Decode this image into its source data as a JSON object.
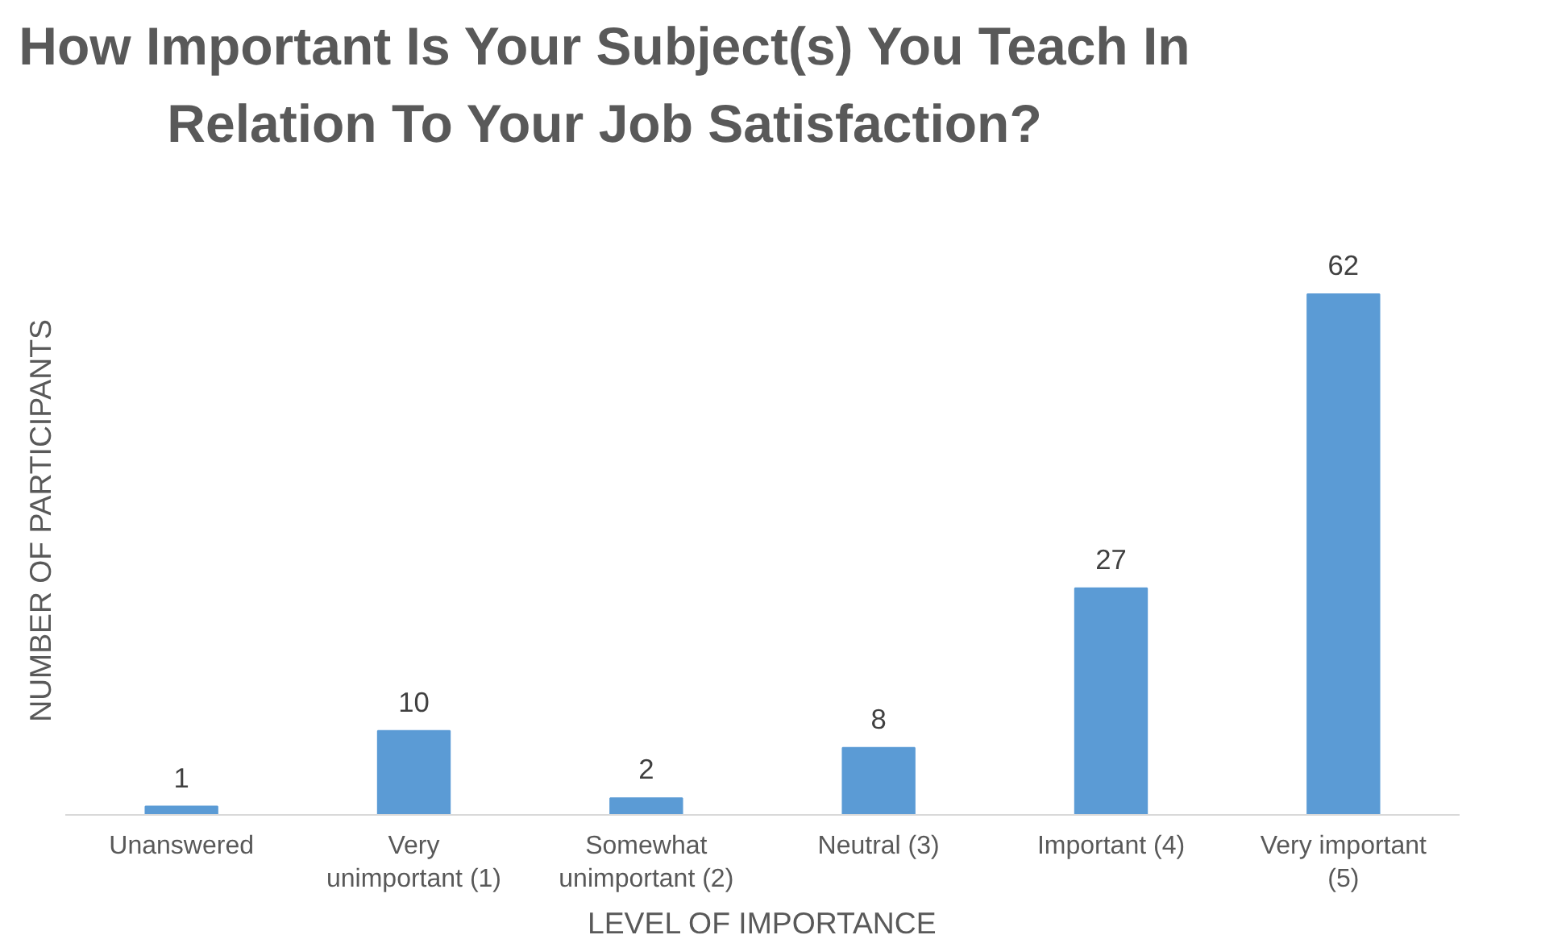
{
  "chart_data": {
    "type": "bar",
    "title": "How Important Is Your Subject(s) You Teach In Relation To Your Job Satisfaction?",
    "xlabel": "LEVEL OF IMPORTANCE",
    "ylabel": "NUMBER OF PARTICIPANTS",
    "categories": [
      "Unanswered",
      "Very unimportant (1)",
      "Somewhat unimportant (2)",
      "Neutral (3)",
      "Important (4)",
      "Very important (5)"
    ],
    "values": [
      1,
      10,
      2,
      8,
      27,
      62
    ],
    "color": "#5b9bd5",
    "data_labels": true,
    "grid": false
  }
}
